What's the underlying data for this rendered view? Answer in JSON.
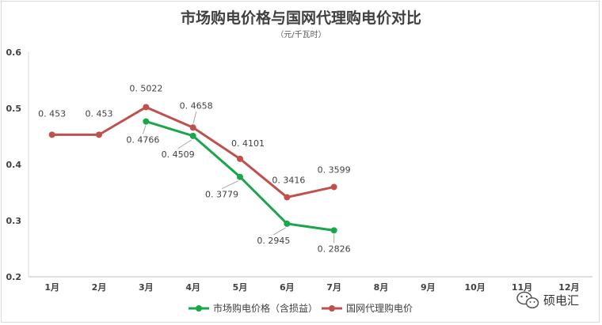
{
  "chart_data": {
    "type": "line",
    "title": "市场购电价格与国网代理购电价对比",
    "subtitle": "（元/千瓦时）",
    "categories": [
      "1月",
      "2月",
      "3月",
      "4月",
      "5月",
      "6月",
      "7月",
      "8月",
      "9月",
      "10月",
      "11月",
      "12月"
    ],
    "ylim": [
      0.2,
      0.6
    ],
    "yticks": [
      "0.2",
      "0.3",
      "0.4",
      "0.5",
      "0.6"
    ],
    "ytick_values": [
      0.2,
      0.3,
      0.4,
      0.5,
      0.6
    ],
    "series": [
      {
        "name": "市场购电价格（含损益）",
        "color": "#1aa64a",
        "values": [
          null,
          null,
          0.4766,
          0.4509,
          0.3779,
          0.2945,
          0.2826,
          null,
          null,
          null,
          null,
          null
        ],
        "labels": [
          "",
          "",
          "0. 4766",
          "0. 4509",
          "0. 3779",
          "0. 2945",
          "0. 2826",
          "",
          "",
          "",
          "",
          ""
        ]
      },
      {
        "name": "国网代理购电价",
        "color": "#c0504d",
        "values": [
          0.453,
          0.453,
          0.5022,
          0.4658,
          0.4101,
          0.3416,
          0.3599,
          null,
          null,
          null,
          null,
          null
        ],
        "labels": [
          "0. 453",
          "0. 453",
          "0. 5022",
          "0. 4658",
          "0. 4101",
          "0. 3416",
          "0. 3599",
          "",
          "",
          "",
          "",
          ""
        ]
      }
    ],
    "grid": false,
    "legend_position": "bottom"
  },
  "watermark": {
    "text": "硕电汇",
    "icon": "wechat-icon"
  }
}
